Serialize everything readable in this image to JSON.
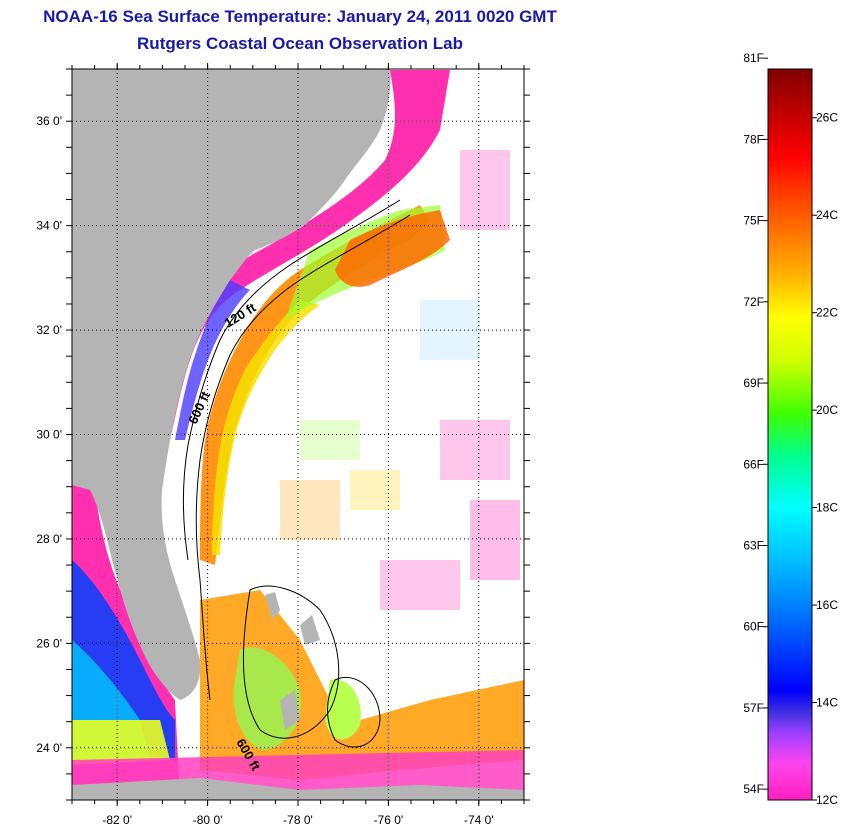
{
  "title": "NOAA-16 Sea Surface Temperature:  January 24, 2011 0020 GMT",
  "subtitle": "Rutgers Coastal Ocean Observation Lab",
  "map": {
    "lon_range": [
      -83.0,
      -73.0
    ],
    "lat_range": [
      23.0,
      37.0
    ],
    "lon_ticks": [
      -82,
      -80,
      -78,
      -76,
      -74
    ],
    "lat_ticks": [
      24,
      26,
      28,
      30,
      32,
      34,
      36
    ],
    "lon_tick_labels": [
      "-82 0'",
      "-80 0'",
      "-78 0'",
      "-76 0'",
      "-74 0'"
    ],
    "lat_tick_labels": [
      "24 0'",
      "26 0'",
      "28 0'",
      "30 0'",
      "32 0'",
      "34 0'",
      "36 0'"
    ],
    "land_color": "#b4b4b4",
    "no_data_color": "#ffffff",
    "contour_labels": [
      "120 ft",
      "600 ft",
      "600 ft"
    ]
  },
  "colorbar": {
    "fahrenheit_labels": [
      "81F",
      "78F",
      "75F",
      "72F",
      "69F",
      "66F",
      "63F",
      "60F",
      "57F",
      "54F"
    ],
    "celsius_labels": [
      "26C",
      "24C",
      "22C",
      "20C",
      "18C",
      "16C",
      "14C",
      "12C"
    ],
    "range_c": [
      12,
      27
    ],
    "colors": [
      "#ff1fbf",
      "#ff44ee",
      "#a040ff",
      "#4030e0",
      "#0000ff",
      "#0070ff",
      "#00c0ff",
      "#00ffff",
      "#00ff90",
      "#40ff00",
      "#d0ff00",
      "#ffff00",
      "#ffb000",
      "#ff7000",
      "#ff3000",
      "#ff0000",
      "#c00000",
      "#800000"
    ]
  }
}
